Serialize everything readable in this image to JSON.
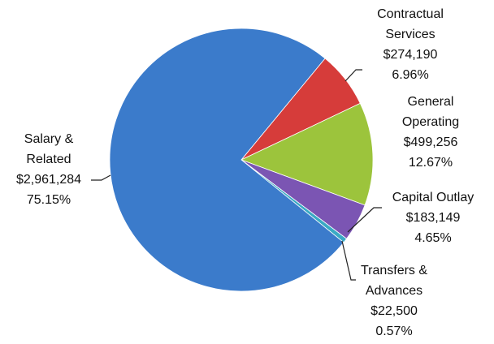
{
  "chart_data": {
    "type": "pie",
    "categories": [
      "Contractual Services",
      "General Operating",
      "Capital Outlay",
      "Transfers & Advances",
      "Salary & Related"
    ],
    "values": [
      274190,
      499256,
      183149,
      22500,
      2961284
    ],
    "value_labels": [
      "$274,190",
      "$499,256",
      "$183,149",
      "$22,500",
      "$2,961,284"
    ],
    "percent_labels": [
      "6.96%",
      "12.67%",
      "4.65%",
      "0.57%",
      "75.15%"
    ],
    "colors": [
      "#d63c3a",
      "#9cc43c",
      "#7b55b3",
      "#3aaac4",
      "#3b7bcb"
    ]
  }
}
